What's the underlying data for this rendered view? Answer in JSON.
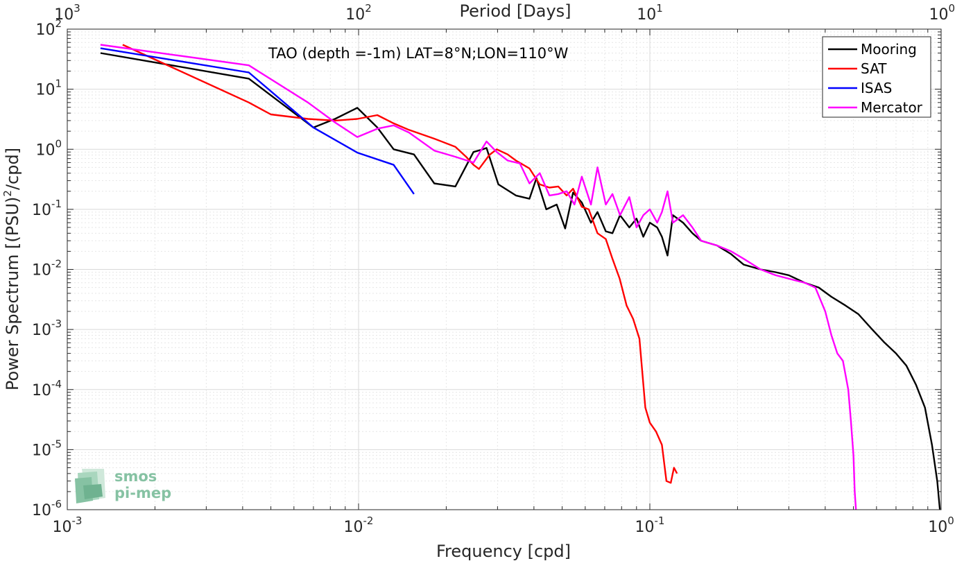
{
  "chart_data": {
    "type": "line",
    "title": "TAO (depth =-1m) LAT=8°N;LON=110°W",
    "xlabel": "Frequency [cpd]",
    "ylabel_main": "Power Spectrum [(PSU)",
    "ylabel_sup": "2",
    "ylabel_tail": "/cpd]",
    "top_xlabel": "Period [Days]",
    "x_scale": "log",
    "y_scale": "log",
    "xlim": [
      0.001,
      1
    ],
    "ylim": [
      1e-06,
      100
    ],
    "grid": true,
    "minor_grid": true,
    "legend_position": "top-right",
    "x_ticks": [
      {
        "value": 0.001,
        "base": "10",
        "exp": "-3"
      },
      {
        "value": 0.01,
        "base": "10",
        "exp": "-2"
      },
      {
        "value": 0.1,
        "base": "10",
        "exp": "-1"
      },
      {
        "value": 1,
        "base": "10",
        "exp": "0"
      }
    ],
    "y_ticks": [
      {
        "value": 1e-06,
        "base": "10",
        "exp": "-6"
      },
      {
        "value": 1e-05,
        "base": "10",
        "exp": "-5"
      },
      {
        "value": 0.0001,
        "base": "10",
        "exp": "-4"
      },
      {
        "value": 0.001,
        "base": "10",
        "exp": "-3"
      },
      {
        "value": 0.01,
        "base": "10",
        "exp": "-2"
      },
      {
        "value": 0.1,
        "base": "10",
        "exp": "-1"
      },
      {
        "value": 1,
        "base": "10",
        "exp": "0"
      },
      {
        "value": 10,
        "base": "10",
        "exp": "1"
      },
      {
        "value": 100,
        "base": "10",
        "exp": "2"
      }
    ],
    "top_ticks": [
      {
        "freq": 0.001,
        "base": "10",
        "exp": "3"
      },
      {
        "freq": 0.01,
        "base": "10",
        "exp": "2"
      },
      {
        "freq": 0.1,
        "base": "10",
        "exp": "1"
      },
      {
        "freq": 1,
        "base": "10",
        "exp": "0"
      }
    ],
    "series": [
      {
        "name": "Mooring",
        "color": "#000000",
        "points": [
          [
            0.0013,
            40
          ],
          [
            0.0042,
            15
          ],
          [
            0.007,
            2.3
          ],
          [
            0.0083,
            3.2
          ],
          [
            0.0099,
            4.9
          ],
          [
            0.0116,
            2.3
          ],
          [
            0.0132,
            1.0
          ],
          [
            0.0155,
            0.82
          ],
          [
            0.0182,
            0.27
          ],
          [
            0.0215,
            0.24
          ],
          [
            0.0248,
            0.9
          ],
          [
            0.0264,
            0.98
          ],
          [
            0.0275,
            1.05
          ],
          [
            0.0302,
            0.26
          ],
          [
            0.0347,
            0.17
          ],
          [
            0.0386,
            0.15
          ],
          [
            0.0408,
            0.33
          ],
          [
            0.0441,
            0.1
          ],
          [
            0.0479,
            0.12
          ],
          [
            0.0512,
            0.048
          ],
          [
            0.0545,
            0.19
          ],
          [
            0.0584,
            0.13
          ],
          [
            0.0628,
            0.06
          ],
          [
            0.0661,
            0.09
          ],
          [
            0.0706,
            0.043
          ],
          [
            0.0744,
            0.04
          ],
          [
            0.079,
            0.08
          ],
          [
            0.085,
            0.05
          ],
          [
            0.09,
            0.07
          ],
          [
            0.095,
            0.035
          ],
          [
            0.1,
            0.06
          ],
          [
            0.106,
            0.05
          ],
          [
            0.11,
            0.035
          ],
          [
            0.115,
            0.017
          ],
          [
            0.12,
            0.08
          ],
          [
            0.13,
            0.06
          ],
          [
            0.14,
            0.04
          ],
          [
            0.15,
            0.03
          ],
          [
            0.17,
            0.025
          ],
          [
            0.19,
            0.018
          ],
          [
            0.21,
            0.012
          ],
          [
            0.24,
            0.01
          ],
          [
            0.27,
            0.009
          ],
          [
            0.3,
            0.008
          ],
          [
            0.34,
            0.006
          ],
          [
            0.38,
            0.005
          ],
          [
            0.42,
            0.0035
          ],
          [
            0.47,
            0.0025
          ],
          [
            0.52,
            0.0018
          ],
          [
            0.58,
            0.001
          ],
          [
            0.64,
            0.0006
          ],
          [
            0.7,
            0.0004
          ],
          [
            0.76,
            0.00025
          ],
          [
            0.82,
            0.00012
          ],
          [
            0.88,
            5e-05
          ],
          [
            0.93,
            1.2e-05
          ],
          [
            0.97,
            3e-06
          ],
          [
            0.99,
            1e-06
          ]
        ]
      },
      {
        "name": "SAT",
        "color": "#ff0000",
        "points": [
          [
            0.00155,
            55
          ],
          [
            0.0021,
            28
          ],
          [
            0.0042,
            6
          ],
          [
            0.005,
            3.8
          ],
          [
            0.0067,
            3.2
          ],
          [
            0.0083,
            3.0
          ],
          [
            0.0099,
            3.2
          ],
          [
            0.0116,
            3.7
          ],
          [
            0.0132,
            2.7
          ],
          [
            0.0149,
            2.1
          ],
          [
            0.0182,
            1.5
          ],
          [
            0.0215,
            1.1
          ],
          [
            0.0234,
            0.75
          ],
          [
            0.0248,
            0.55
          ],
          [
            0.0259,
            0.47
          ],
          [
            0.0281,
            0.8
          ],
          [
            0.0298,
            1.0
          ],
          [
            0.0325,
            0.82
          ],
          [
            0.0347,
            0.65
          ],
          [
            0.0386,
            0.48
          ],
          [
            0.0419,
            0.26
          ],
          [
            0.0452,
            0.23
          ],
          [
            0.0485,
            0.24
          ],
          [
            0.0518,
            0.17
          ],
          [
            0.0545,
            0.22
          ],
          [
            0.0584,
            0.11
          ],
          [
            0.0617,
            0.1
          ],
          [
            0.0661,
            0.04
          ],
          [
            0.0706,
            0.032
          ],
          [
            0.0744,
            0.015
          ],
          [
            0.0788,
            0.007
          ],
          [
            0.0832,
            0.0025
          ],
          [
            0.0876,
            0.0015
          ],
          [
            0.0921,
            0.0007
          ],
          [
            0.0965,
            5e-05
          ],
          [
            0.1,
            2.8e-05
          ],
          [
            0.105,
            2e-05
          ],
          [
            0.11,
            1.2e-05
          ],
          [
            0.114,
            3e-06
          ],
          [
            0.118,
            2.8e-06
          ],
          [
            0.121,
            5e-06
          ],
          [
            0.124,
            4e-06
          ]
        ]
      },
      {
        "name": "ISAS",
        "color": "#0000ff",
        "points": [
          [
            0.0013,
            48
          ],
          [
            0.0042,
            19
          ],
          [
            0.007,
            2.3
          ],
          [
            0.0099,
            0.88
          ],
          [
            0.0132,
            0.55
          ],
          [
            0.0155,
            0.18
          ]
        ]
      },
      {
        "name": "Mercator",
        "color": "#ff00ff",
        "points": [
          [
            0.0013,
            55
          ],
          [
            0.0042,
            25
          ],
          [
            0.0067,
            6
          ],
          [
            0.0083,
            2.8
          ],
          [
            0.0099,
            1.6
          ],
          [
            0.0116,
            2.2
          ],
          [
            0.0132,
            2.5
          ],
          [
            0.0149,
            1.9
          ],
          [
            0.0182,
            0.95
          ],
          [
            0.0215,
            0.75
          ],
          [
            0.0248,
            0.6
          ],
          [
            0.0275,
            1.35
          ],
          [
            0.0298,
            0.9
          ],
          [
            0.0325,
            0.65
          ],
          [
            0.0358,
            0.58
          ],
          [
            0.0386,
            0.27
          ],
          [
            0.0419,
            0.4
          ],
          [
            0.0452,
            0.17
          ],
          [
            0.0485,
            0.18
          ],
          [
            0.0518,
            0.2
          ],
          [
            0.0551,
            0.12
          ],
          [
            0.0584,
            0.35
          ],
          [
            0.0628,
            0.12
          ],
          [
            0.0661,
            0.5
          ],
          [
            0.0706,
            0.12
          ],
          [
            0.0744,
            0.18
          ],
          [
            0.079,
            0.08
          ],
          [
            0.085,
            0.16
          ],
          [
            0.09,
            0.05
          ],
          [
            0.095,
            0.08
          ],
          [
            0.1,
            0.1
          ],
          [
            0.106,
            0.06
          ],
          [
            0.11,
            0.09
          ],
          [
            0.115,
            0.2
          ],
          [
            0.12,
            0.06
          ],
          [
            0.13,
            0.08
          ],
          [
            0.14,
            0.05
          ],
          [
            0.15,
            0.03
          ],
          [
            0.17,
            0.025
          ],
          [
            0.19,
            0.02
          ],
          [
            0.21,
            0.015
          ],
          [
            0.24,
            0.01
          ],
          [
            0.27,
            0.008
          ],
          [
            0.3,
            0.007
          ],
          [
            0.34,
            0.006
          ],
          [
            0.37,
            0.005
          ],
          [
            0.4,
            0.002
          ],
          [
            0.42,
            0.0008
          ],
          [
            0.44,
            0.0004
          ],
          [
            0.46,
            0.0003
          ],
          [
            0.48,
            0.0001
          ],
          [
            0.49,
            3e-05
          ],
          [
            0.5,
            8e-06
          ],
          [
            0.505,
            2e-06
          ],
          [
            0.51,
            1e-06
          ]
        ]
      }
    ],
    "legend": [
      "Mooring",
      "SAT",
      "ISAS",
      "Mercator"
    ]
  },
  "logo": {
    "line1": "smos",
    "line2": "pi-mep",
    "color": "#86c2a3"
  }
}
